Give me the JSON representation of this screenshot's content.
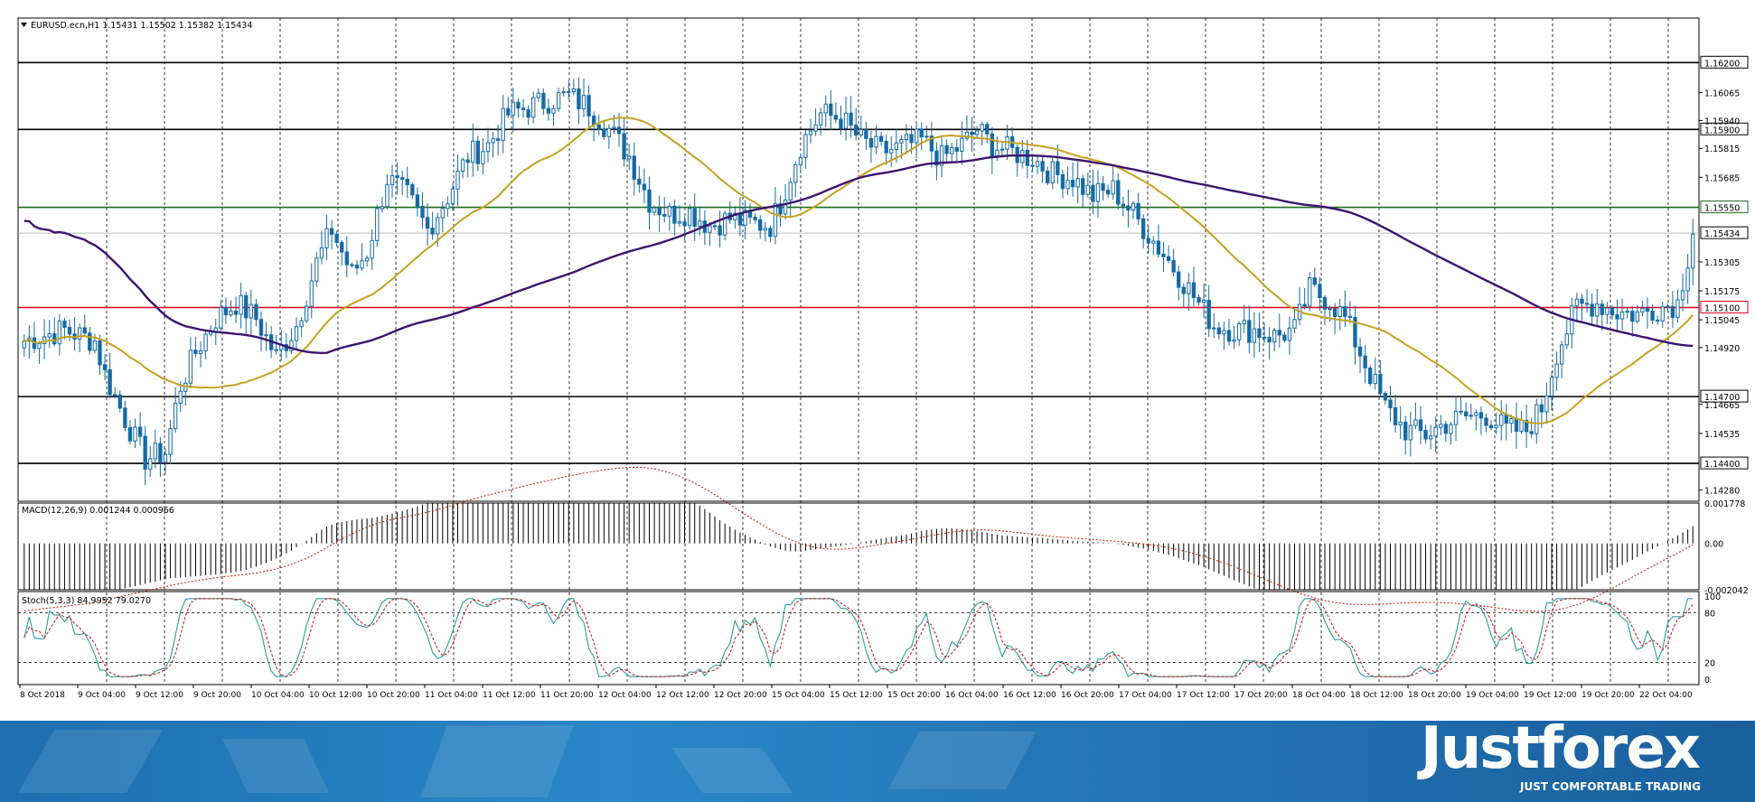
{
  "chart_data": {
    "type": "candlestick",
    "symbol_header": "EURUSD.ecn,H1  1.15431 1.15502 1.15382 1.15434",
    "price_axis": {
      "ticks": [
        "1.16065",
        "1.15940",
        "1.15815",
        "1.15685",
        "1.15305",
        "1.15175",
        "1.15045",
        "1.14920",
        "1.14665",
        "1.14535",
        "1.14280"
      ],
      "range": [
        1.1423,
        1.164
      ]
    },
    "levels": [
      {
        "label": "1.16200",
        "value": 1.162,
        "color": "#000000"
      },
      {
        "label": "1.15900",
        "value": 1.159,
        "color": "#000000"
      },
      {
        "label": "1.15550",
        "value": 1.1555,
        "color": "#1e6e1e"
      },
      {
        "label": "1.15434",
        "value": 1.15434,
        "color": "#bdbdbd"
      },
      {
        "label": "1.15100",
        "value": 1.151,
        "color": "#e0001b"
      },
      {
        "label": "1.14700",
        "value": 1.147,
        "color": "#000000"
      },
      {
        "label": "1.14400",
        "value": 1.144,
        "color": "#000000"
      }
    ],
    "time_labels": [
      "8 Oct 2018",
      "9 Oct 04:00",
      "9 Oct 12:00",
      "9 Oct 20:00",
      "10 Oct 04:00",
      "10 Oct 12:00",
      "10 Oct 20:00",
      "11 Oct 04:00",
      "11 Oct 12:00",
      "11 Oct 20:00",
      "12 Oct 04:00",
      "12 Oct 12:00",
      "12 Oct 20:00",
      "15 Oct 04:00",
      "15 Oct 12:00",
      "15 Oct 20:00",
      "16 Oct 04:00",
      "16 Oct 12:00",
      "16 Oct 20:00",
      "17 Oct 04:00",
      "17 Oct 12:00",
      "17 Oct 20:00",
      "18 Oct 04:00",
      "18 Oct 12:00",
      "18 Oct 20:00",
      "19 Oct 04:00",
      "19 Oct 12:00",
      "19 Oct 20:00",
      "22 Oct 04:00"
    ],
    "close_keypoints": [
      [
        0,
        1.1495
      ],
      [
        8,
        1.15
      ],
      [
        14,
        1.1495
      ],
      [
        16,
        1.148
      ],
      [
        20,
        1.146
      ],
      [
        24,
        1.1442
      ],
      [
        28,
        1.1445
      ],
      [
        31,
        1.1475
      ],
      [
        34,
        1.149
      ],
      [
        38,
        1.1505
      ],
      [
        42,
        1.1512
      ],
      [
        46,
        1.1505
      ],
      [
        50,
        1.1488
      ],
      [
        54,
        1.1502
      ],
      [
        58,
        1.153
      ],
      [
        61,
        1.1545
      ],
      [
        65,
        1.1525
      ],
      [
        68,
        1.1535
      ],
      [
        72,
        1.1568
      ],
      [
        76,
        1.156
      ],
      [
        80,
        1.1545
      ],
      [
        84,
        1.156
      ],
      [
        88,
        1.1578
      ],
      [
        92,
        1.1583
      ],
      [
        96,
        1.1597
      ],
      [
        100,
        1.16
      ],
      [
        104,
        1.1603
      ],
      [
        108,
        1.1605
      ],
      [
        112,
        1.16
      ],
      [
        116,
        1.159
      ],
      [
        120,
        1.1578
      ],
      [
        124,
        1.1558
      ],
      [
        128,
        1.1552
      ],
      [
        132,
        1.1553
      ],
      [
        136,
        1.1547
      ],
      [
        140,
        1.155
      ],
      [
        144,
        1.1548
      ],
      [
        148,
        1.1547
      ],
      [
        150,
        1.1557
      ],
      [
        154,
        1.1583
      ],
      [
        158,
        1.1597
      ],
      [
        162,
        1.1595
      ],
      [
        166,
        1.1585
      ],
      [
        170,
        1.158
      ],
      [
        174,
        1.1582
      ],
      [
        178,
        1.1585
      ],
      [
        182,
        1.1577
      ],
      [
        186,
        1.1583
      ],
      [
        189,
        1.159
      ],
      [
        192,
        1.1583
      ],
      [
        196,
        1.158
      ],
      [
        200,
        1.1577
      ],
      [
        204,
        1.157
      ],
      [
        208,
        1.1568
      ],
      [
        212,
        1.156
      ],
      [
        216,
        1.1563
      ],
      [
        220,
        1.1552
      ],
      [
        224,
        1.154
      ],
      [
        228,
        1.1528
      ],
      [
        232,
        1.1515
      ],
      [
        236,
        1.1502
      ],
      [
        240,
        1.15
      ],
      [
        244,
        1.15
      ],
      [
        248,
        1.1497
      ],
      [
        252,
        1.15
      ],
      [
        255,
        1.1518
      ],
      [
        259,
        1.1513
      ],
      [
        262,
        1.1505
      ],
      [
        266,
        1.1485
      ],
      [
        270,
        1.1465
      ],
      [
        274,
        1.1455
      ],
      [
        278,
        1.1453
      ],
      [
        282,
        1.1458
      ],
      [
        286,
        1.1461
      ],
      [
        290,
        1.1462
      ],
      [
        294,
        1.1455
      ],
      [
        298,
        1.1455
      ],
      [
        301,
        1.1465
      ],
      [
        304,
        1.149
      ],
      [
        308,
        1.151
      ],
      [
        312,
        1.1512
      ],
      [
        316,
        1.1508
      ],
      [
        320,
        1.1507
      ],
      [
        324,
        1.151
      ],
      [
        328,
        1.1512
      ],
      [
        331,
        1.1543
      ]
    ],
    "ma_slow_color": "#3b1470",
    "ma_fast_color": "#c8a020",
    "up_candle_color": "#ffffff",
    "down_candle_color": "#176aa3",
    "macd": {
      "header": "MACD(12,26,9) 0.001244 0.000966",
      "ticks": [
        "0.001778",
        "0.00",
        "-0.002042"
      ],
      "range": [
        -0.002042,
        0.001778
      ]
    },
    "stoch": {
      "header": "Stoch(5,3,3) 84.9952 79.0270",
      "ticks": [
        "100",
        "80",
        "20",
        "0"
      ],
      "levels": [
        80,
        20
      ],
      "range": [
        0,
        100
      ]
    }
  },
  "banner": {
    "brand": "Justforex",
    "tagline": "JUST COMFORTABLE TRADING"
  }
}
